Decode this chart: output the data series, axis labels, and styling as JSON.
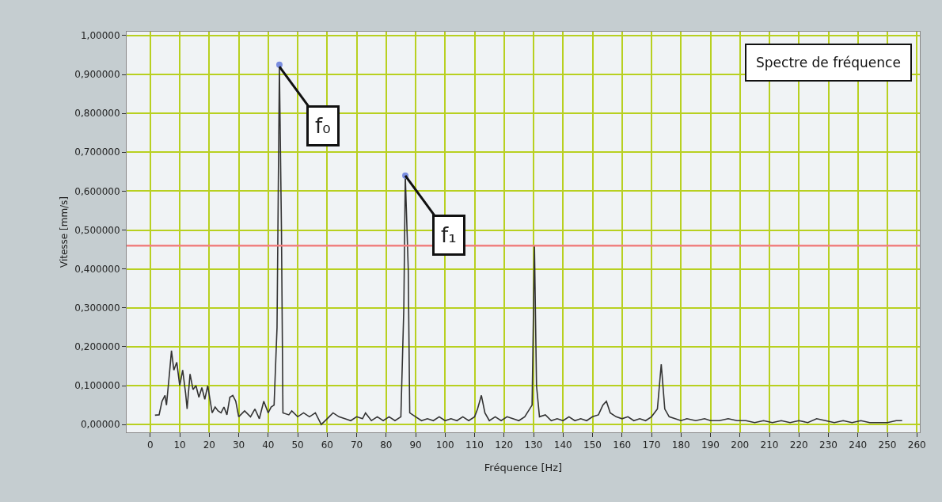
{
  "chart_data": {
    "type": "line",
    "title": "Spectre de fréquence",
    "xlabel": "Fréquence [Hz]",
    "ylabel": "Vitesse [mm/s]",
    "xlim": [
      -8,
      261
    ],
    "xticks": [
      0,
      10,
      20,
      30,
      40,
      50,
      60,
      70,
      80,
      90,
      100,
      110,
      120,
      130,
      140,
      150,
      160,
      170,
      180,
      190,
      200,
      210,
      220,
      230,
      240,
      250,
      260
    ],
    "ylim": [
      -0.02,
      1.01
    ],
    "yticks": [
      {
        "value": 0,
        "label": "0,00000"
      },
      {
        "value": 0.1,
        "label": "0,100000"
      },
      {
        "value": 0.2,
        "label": "0,200000"
      },
      {
        "value": 0.3,
        "label": "0,300000"
      },
      {
        "value": 0.4,
        "label": "0,400000"
      },
      {
        "value": 0.5,
        "label": "0,500000"
      },
      {
        "value": 0.6,
        "label": "0,600000"
      },
      {
        "value": 0.7,
        "label": "0,700000"
      },
      {
        "value": 0.8,
        "label": "0,800000"
      },
      {
        "value": 0.9,
        "label": "0,900000"
      },
      {
        "value": 1,
        "label": "1,00000"
      }
    ],
    "grid": true,
    "line_style": "solid",
    "ref_lines": [
      {
        "axis": "y",
        "value": 0.46,
        "color": "#f08080"
      }
    ],
    "annotations": [
      {
        "text": "f₀",
        "x": 43.8,
        "y": 0.92
      },
      {
        "text": "f₁",
        "x": 86.5,
        "y": 0.64
      }
    ],
    "series": [
      {
        "type": "line",
        "color": "#333333",
        "marker": "none",
        "x": [
          1.6,
          3,
          4,
          5,
          5.5,
          6.5,
          7.2,
          8,
          9,
          10,
          11,
          12,
          12.5,
          13.5,
          14.5,
          15.5,
          16.5,
          17.5,
          18.5,
          19.5,
          21,
          22,
          23,
          24,
          25,
          26,
          27,
          28,
          29,
          30,
          32,
          34,
          35.5,
          37,
          38.5,
          40,
          41,
          42,
          43,
          43.8,
          44.5,
          45,
          47,
          48,
          50,
          52,
          54,
          56,
          58,
          60,
          62,
          64,
          66,
          68,
          70,
          72,
          73,
          75,
          77,
          79,
          81,
          83,
          85,
          86,
          86.5,
          87.5,
          88,
          90,
          92,
          94,
          96,
          98,
          100,
          102,
          104,
          106,
          108,
          110,
          111,
          112.3,
          113.5,
          115,
          117,
          119,
          121,
          123,
          125,
          127,
          129.5,
          130.3,
          131,
          132,
          134,
          136,
          138,
          140,
          142,
          144,
          146,
          148,
          150,
          152,
          153.5,
          154.7,
          156,
          158,
          160,
          162,
          164,
          166,
          168,
          170,
          172,
          173.3,
          174.5,
          176,
          178,
          180,
          182,
          185,
          188,
          190,
          193,
          196,
          199,
          202,
          205,
          208,
          211,
          214,
          217,
          220,
          223,
          226,
          229,
          232,
          235,
          238,
          241,
          244,
          247,
          250,
          253,
          255
        ],
        "values": [
          0.024,
          0.025,
          0.06,
          0.075,
          0.05,
          0.13,
          0.19,
          0.14,
          0.16,
          0.1,
          0.14,
          0.08,
          0.04,
          0.13,
          0.09,
          0.1,
          0.07,
          0.095,
          0.065,
          0.1,
          0.03,
          0.045,
          0.035,
          0.03,
          0.045,
          0.025,
          0.07,
          0.075,
          0.06,
          0.02,
          0.035,
          0.02,
          0.04,
          0.015,
          0.06,
          0.03,
          0.045,
          0.05,
          0.25,
          0.92,
          0.5,
          0.03,
          0.025,
          0.035,
          0.02,
          0.03,
          0.02,
          0.03,
          0.0,
          0.015,
          0.03,
          0.02,
          0.015,
          0.01,
          0.02,
          0.015,
          0.03,
          0.01,
          0.02,
          0.01,
          0.02,
          0.01,
          0.02,
          0.3,
          0.64,
          0.4,
          0.03,
          0.02,
          0.01,
          0.015,
          0.01,
          0.02,
          0.01,
          0.015,
          0.01,
          0.02,
          0.01,
          0.02,
          0.04,
          0.075,
          0.03,
          0.01,
          0.02,
          0.01,
          0.02,
          0.015,
          0.01,
          0.02,
          0.05,
          0.46,
          0.1,
          0.02,
          0.025,
          0.01,
          0.015,
          0.01,
          0.02,
          0.01,
          0.015,
          0.01,
          0.02,
          0.025,
          0.05,
          0.06,
          0.03,
          0.02,
          0.015,
          0.02,
          0.01,
          0.015,
          0.01,
          0.02,
          0.04,
          0.155,
          0.04,
          0.02,
          0.015,
          0.01,
          0.015,
          0.01,
          0.015,
          0.01,
          0.01,
          0.015,
          0.01,
          0.01,
          0.005,
          0.01,
          0.005,
          0.01,
          0.005,
          0.01,
          0.005,
          0.015,
          0.01,
          0.005,
          0.01,
          0.005,
          0.01,
          0.005,
          0.005,
          0.005,
          0.01,
          0.01
        ]
      },
      {
        "type": "scatter",
        "color": "#7a8ee0",
        "marker": "circle",
        "x": [
          43.8,
          86.5
        ],
        "values": [
          0.925,
          0.64
        ]
      }
    ]
  }
}
